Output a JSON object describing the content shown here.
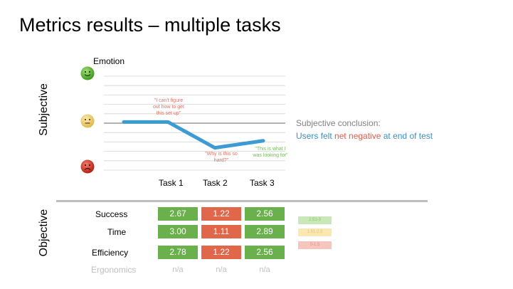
{
  "title": "Metrics results – multiple tasks",
  "axis_labels": {
    "subjective": "Subjective",
    "objective": "Objective"
  },
  "emotion_label": "Emotion",
  "faces": [
    {
      "name": "happy-face-icon",
      "color": "#5bbf2a",
      "mood": "happy"
    },
    {
      "name": "neutral-face-icon",
      "color": "#f2d06b",
      "mood": "neutral"
    },
    {
      "name": "sad-face-icon",
      "color": "#d9382a",
      "mood": "sad"
    }
  ],
  "chart_data": {
    "type": "line",
    "categories": [
      "Task 1",
      "Task 2",
      "Task 3"
    ],
    "series": [
      {
        "values": [
          0.05,
          -1.05,
          -0.75
        ]
      }
    ],
    "ylim": [
      -2,
      2
    ],
    "line_color": "#3d9bd4",
    "grid": true,
    "annotations": [
      {
        "text": "\"I can't figure\nout how to get\nthis set up\"",
        "color": "#e07060"
      },
      {
        "text": "\"Why is this so\nhard?\"",
        "color": "#e07060"
      },
      {
        "text": "\"This is what I\nwas looking for\"",
        "color": "#6cbf4a"
      }
    ]
  },
  "conclusion": {
    "heading": "Subjective conclusion:",
    "part1": "Users felt ",
    "part2": "net negative",
    "part3": " at end of test",
    "color_main": "#3d8fc4",
    "color_neg": "#e25c46"
  },
  "metrics": {
    "rows": [
      {
        "label": "Success",
        "values": [
          "2.67",
          "1.22",
          "2.56"
        ],
        "levels": [
          "good",
          "bad",
          "good"
        ]
      },
      {
        "label": "Time",
        "values": [
          "3.00",
          "1.11",
          "2.89"
        ],
        "levels": [
          "good",
          "bad",
          "good"
        ]
      },
      {
        "label": "Efficiency",
        "values": [
          "2.78",
          "1.22",
          "2.56"
        ],
        "levels": [
          "good",
          "bad",
          "good"
        ]
      }
    ],
    "ergonomics": {
      "label": "Ergonomics",
      "values": [
        "n/a",
        "n/a",
        "n/a"
      ]
    }
  },
  "level_colors": {
    "good": "#6ab04c",
    "mid": "#f0c040",
    "bad": "#e0674a"
  },
  "legend": [
    {
      "label": "2.51-3",
      "bg": "#c9e8b9",
      "fg": "#8cc070"
    },
    {
      "label": "1.51-2.5",
      "bg": "#fbe7b0",
      "fg": "#e8c070"
    },
    {
      "label": "0-1.5",
      "bg": "#f5c6bd",
      "fg": "#e89080"
    }
  ]
}
